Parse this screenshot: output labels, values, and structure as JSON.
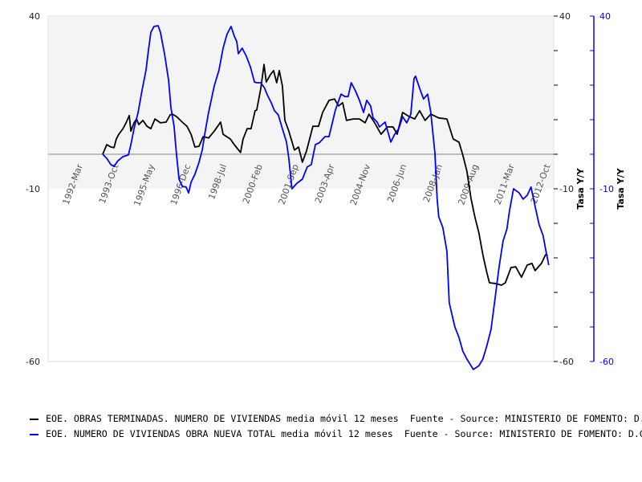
{
  "chart_data": {
    "type": "line",
    "title": "",
    "xlabel": "",
    "ylabel_left": "",
    "ylabel_right": "Tasa Y/Y",
    "ylabel_right2": "Tasa Y/Y",
    "xlim": [
      1990.65,
      2012.9
    ],
    "ylim": [
      -60,
      40
    ],
    "y2lim": [
      -60,
      40
    ],
    "y_ticks_labeled": [
      "40",
      "-10",
      "-60"
    ],
    "y_tick_values": [
      40,
      -10,
      -60
    ],
    "y_minor_step": 10,
    "grid": false,
    "shaded_band": {
      "from": -10,
      "to": 40,
      "color": "#f4f4f4"
    },
    "zero_line_color": "#888888",
    "x_tick_labels": [
      "1992-Mar",
      "1993-Oct",
      "1995-May",
      "1996-Dec",
      "1998-Jul",
      "2000-Feb",
      "2001-Sep",
      "2003-Apr",
      "2004-Nov",
      "2006-Jun",
      "2008-Jan",
      "2009-Aug",
      "2011-Mar",
      "2012-Oct"
    ],
    "x_tick_values": [
      1992.17,
      1993.75,
      1995.33,
      1996.92,
      1998.5,
      2000.08,
      2001.67,
      2003.25,
      2004.83,
      2006.42,
      2008.0,
      2009.58,
      2011.17,
      2012.75
    ],
    "legend_position": "bottom",
    "series": [
      {
        "name": "EOE. OBRAS TERMINADAS. NUMERO DE VIVIENDAS media móvil 12 meses  Fuente - Source: MINISTERIO DE FOMENTO: D.G. de Programación Económica",
        "color": "#000000",
        "axis": "left",
        "points": [
          [
            1993.05,
            0
          ],
          [
            1993.23,
            2.8
          ],
          [
            1993.41,
            2.1
          ],
          [
            1993.55,
            1.9
          ],
          [
            1993.65,
            4.4
          ],
          [
            1993.76,
            5.8
          ],
          [
            1993.94,
            7.4
          ],
          [
            1994.08,
            9.1
          ],
          [
            1994.22,
            11.2
          ],
          [
            1994.29,
            6.7
          ],
          [
            1994.43,
            9.1
          ],
          [
            1994.54,
            10.2
          ],
          [
            1994.64,
            8.6
          ],
          [
            1994.82,
            9.8
          ],
          [
            1995.0,
            8.1
          ],
          [
            1995.17,
            7.4
          ],
          [
            1995.35,
            10.2
          ],
          [
            1995.59,
            9.1
          ],
          [
            1995.84,
            9.3
          ],
          [
            1996.02,
            11.4
          ],
          [
            1996.12,
            11.6
          ],
          [
            1996.3,
            10.9
          ],
          [
            1996.55,
            9.3
          ],
          [
            1996.76,
            8.1
          ],
          [
            1996.94,
            5.8
          ],
          [
            1997.11,
            2.1
          ],
          [
            1997.29,
            2.3
          ],
          [
            1997.47,
            5.1
          ],
          [
            1997.71,
            4.7
          ],
          [
            1997.96,
            6.7
          ],
          [
            1998.24,
            9.3
          ],
          [
            1998.35,
            5.8
          ],
          [
            1998.67,
            4.4
          ],
          [
            1998.84,
            2.8
          ],
          [
            1999.12,
            0.5
          ],
          [
            1999.23,
            4.4
          ],
          [
            1999.41,
            7.4
          ],
          [
            1999.58,
            7.4
          ],
          [
            1999.76,
            12.6
          ],
          [
            1999.83,
            12.8
          ],
          [
            2000.01,
            19.1
          ],
          [
            2000.15,
            26.0
          ],
          [
            2000.25,
            20.9
          ],
          [
            2000.43,
            23.0
          ],
          [
            2000.57,
            24.2
          ],
          [
            2000.71,
            20.7
          ],
          [
            2000.82,
            24.2
          ],
          [
            2000.96,
            19.8
          ],
          [
            2001.07,
            9.8
          ],
          [
            2001.24,
            6.7
          ],
          [
            2001.49,
            1.2
          ],
          [
            2001.67,
            2.1
          ],
          [
            2001.84,
            -2.3
          ],
          [
            2002.02,
            0.9
          ],
          [
            2002.3,
            8.1
          ],
          [
            2002.55,
            8.1
          ],
          [
            2002.73,
            12.1
          ],
          [
            2003.01,
            15.6
          ],
          [
            2003.25,
            16.0
          ],
          [
            2003.43,
            14.0
          ],
          [
            2003.61,
            14.9
          ],
          [
            2003.78,
            9.8
          ],
          [
            2004.07,
            10.2
          ],
          [
            2004.35,
            10.2
          ],
          [
            2004.6,
            9.1
          ],
          [
            2004.77,
            11.6
          ],
          [
            2005.02,
            9.1
          ],
          [
            2005.3,
            5.8
          ],
          [
            2005.58,
            7.9
          ],
          [
            2005.83,
            7.9
          ],
          [
            2006.01,
            5.8
          ],
          [
            2006.25,
            12.1
          ],
          [
            2006.54,
            10.9
          ],
          [
            2006.78,
            10.2
          ],
          [
            2007.0,
            12.6
          ],
          [
            2007.24,
            9.8
          ],
          [
            2007.49,
            11.6
          ],
          [
            2007.84,
            10.5
          ],
          [
            2008.2,
            10.2
          ],
          [
            2008.48,
            4.4
          ],
          [
            2008.73,
            3.5
          ],
          [
            2008.9,
            -0.2
          ],
          [
            2009.08,
            -4.9
          ],
          [
            2009.26,
            -12.8
          ],
          [
            2009.43,
            -18.1
          ],
          [
            2009.61,
            -22.8
          ],
          [
            2009.78,
            -29.1
          ],
          [
            2009.96,
            -34.4
          ],
          [
            2010.07,
            -37.2
          ],
          [
            2010.31,
            -37.4
          ],
          [
            2010.6,
            -37.9
          ],
          [
            2010.77,
            -37.2
          ],
          [
            2011.02,
            -32.8
          ],
          [
            2011.23,
            -32.6
          ],
          [
            2011.48,
            -35.6
          ],
          [
            2011.73,
            -32.1
          ],
          [
            2011.94,
            -31.6
          ],
          [
            2012.08,
            -33.7
          ],
          [
            2012.36,
            -31.6
          ],
          [
            2012.54,
            -29.1
          ],
          [
            2012.64,
            -29.3
          ]
        ]
      },
      {
        "name": "EOE. NUMERO DE VIVIENDAS OBRA NUEVA TOTAL media móvil 12 meses  Fuente - Source: MINISTERIO DE FOMENTO: D.G. de Programación Económica",
        "color": "#0000ff",
        "axis": "right",
        "points": [
          [
            1993.05,
            0
          ],
          [
            1993.23,
            -1.2
          ],
          [
            1993.41,
            -3.0
          ],
          [
            1993.55,
            -3.5
          ],
          [
            1993.72,
            -1.9
          ],
          [
            1993.94,
            -0.7
          ],
          [
            1994.18,
            -0.2
          ],
          [
            1994.29,
            2.8
          ],
          [
            1994.43,
            7.4
          ],
          [
            1994.61,
            12.1
          ],
          [
            1994.78,
            18.4
          ],
          [
            1994.96,
            24.4
          ],
          [
            1995.06,
            30.0
          ],
          [
            1995.17,
            35.3
          ],
          [
            1995.31,
            37.0
          ],
          [
            1995.49,
            37.2
          ],
          [
            1995.59,
            35.3
          ],
          [
            1995.77,
            29.1
          ],
          [
            1995.95,
            21.4
          ],
          [
            1996.05,
            13.7
          ],
          [
            1996.19,
            8.1
          ],
          [
            1996.3,
            -0.2
          ],
          [
            1996.41,
            -7.2
          ],
          [
            1996.55,
            -9.3
          ],
          [
            1996.72,
            -9.5
          ],
          [
            1996.83,
            -11.2
          ],
          [
            1996.94,
            -8.1
          ],
          [
            1997.11,
            -5.8
          ],
          [
            1997.29,
            -2.3
          ],
          [
            1997.43,
            1.2
          ],
          [
            1997.54,
            5.8
          ],
          [
            1997.71,
            12.1
          ],
          [
            1997.96,
            19.8
          ],
          [
            1998.17,
            24.4
          ],
          [
            1998.35,
            30.7
          ],
          [
            1998.52,
            34.7
          ],
          [
            1998.7,
            37.0
          ],
          [
            1998.84,
            34.2
          ],
          [
            1998.95,
            32.6
          ],
          [
            1999.02,
            29.1
          ],
          [
            1999.19,
            30.7
          ],
          [
            1999.37,
            28.4
          ],
          [
            1999.55,
            25.3
          ],
          [
            1999.73,
            20.9
          ],
          [
            1999.83,
            20.7
          ],
          [
            2000.01,
            20.7
          ],
          [
            2000.18,
            19.1
          ],
          [
            2000.29,
            17.2
          ],
          [
            2000.47,
            14.9
          ],
          [
            2000.61,
            12.6
          ],
          [
            2000.78,
            11.4
          ],
          [
            2000.96,
            7.4
          ],
          [
            2001.14,
            3.5
          ],
          [
            2001.24,
            -1.2
          ],
          [
            2001.38,
            -10.0
          ],
          [
            2001.6,
            -8.4
          ],
          [
            2001.84,
            -7.2
          ],
          [
            2002.05,
            -3.7
          ],
          [
            2002.23,
            -3.0
          ],
          [
            2002.41,
            2.8
          ],
          [
            2002.58,
            3.3
          ],
          [
            2002.83,
            5.1
          ],
          [
            2003.01,
            5.1
          ],
          [
            2003.18,
            9.8
          ],
          [
            2003.29,
            12.8
          ],
          [
            2003.54,
            17.4
          ],
          [
            2003.71,
            16.7
          ],
          [
            2003.85,
            16.7
          ],
          [
            2003.99,
            20.7
          ],
          [
            2004.17,
            18.4
          ],
          [
            2004.35,
            15.6
          ],
          [
            2004.53,
            12.1
          ],
          [
            2004.67,
            15.6
          ],
          [
            2004.84,
            14.0
          ],
          [
            2004.95,
            10.5
          ],
          [
            2005.13,
            9.3
          ],
          [
            2005.23,
            7.9
          ],
          [
            2005.48,
            9.3
          ],
          [
            2005.73,
            3.5
          ],
          [
            2005.9,
            5.8
          ],
          [
            2006.08,
            7.4
          ],
          [
            2006.25,
            10.9
          ],
          [
            2006.43,
            9.1
          ],
          [
            2006.61,
            11.6
          ],
          [
            2006.75,
            21.9
          ],
          [
            2006.82,
            22.6
          ],
          [
            2007.0,
            19.1
          ],
          [
            2007.17,
            16.0
          ],
          [
            2007.35,
            17.4
          ],
          [
            2007.49,
            12.1
          ],
          [
            2007.67,
            0.5
          ],
          [
            2007.77,
            -12.8
          ],
          [
            2007.84,
            -18.1
          ],
          [
            2008.02,
            -21.2
          ],
          [
            2008.2,
            -28.1
          ],
          [
            2008.3,
            -43.0
          ],
          [
            2008.55,
            -50.0
          ],
          [
            2008.73,
            -53.0
          ],
          [
            2008.9,
            -57.0
          ],
          [
            2009.08,
            -59.3
          ],
          [
            2009.26,
            -61.2
          ],
          [
            2009.36,
            -62.3
          ],
          [
            2009.61,
            -61.2
          ],
          [
            2009.78,
            -59.3
          ],
          [
            2009.96,
            -55.3
          ],
          [
            2010.14,
            -50.7
          ],
          [
            2010.31,
            -42.1
          ],
          [
            2010.49,
            -32.8
          ],
          [
            2010.67,
            -25.1
          ],
          [
            2010.84,
            -21.6
          ],
          [
            2010.95,
            -16.5
          ],
          [
            2011.13,
            -10.0
          ],
          [
            2011.38,
            -11.2
          ],
          [
            2011.55,
            -13.0
          ],
          [
            2011.73,
            -11.9
          ],
          [
            2011.9,
            -9.5
          ],
          [
            2012.08,
            -15.1
          ],
          [
            2012.26,
            -20.5
          ],
          [
            2012.43,
            -23.5
          ],
          [
            2012.54,
            -27.4
          ],
          [
            2012.68,
            -32.1
          ]
        ]
      }
    ]
  },
  "legend": {
    "items": [
      {
        "text": "EOE. OBRAS TERMINADAS. NUMERO DE VIVIENDAS media móvil 12 meses  Fuente - Source: MINISTERIO DE FOMENTO: D.G. de Programación Económica",
        "color": "#000000"
      },
      {
        "text": "EOE. NUMERO DE VIVIENDAS OBRA NUEVA TOTAL media móvil 12 meses  Fuente - Source: MINISTERIO DE FOMENTO: D.G. de Programación Económica",
        "color": "#0000ff"
      }
    ]
  }
}
